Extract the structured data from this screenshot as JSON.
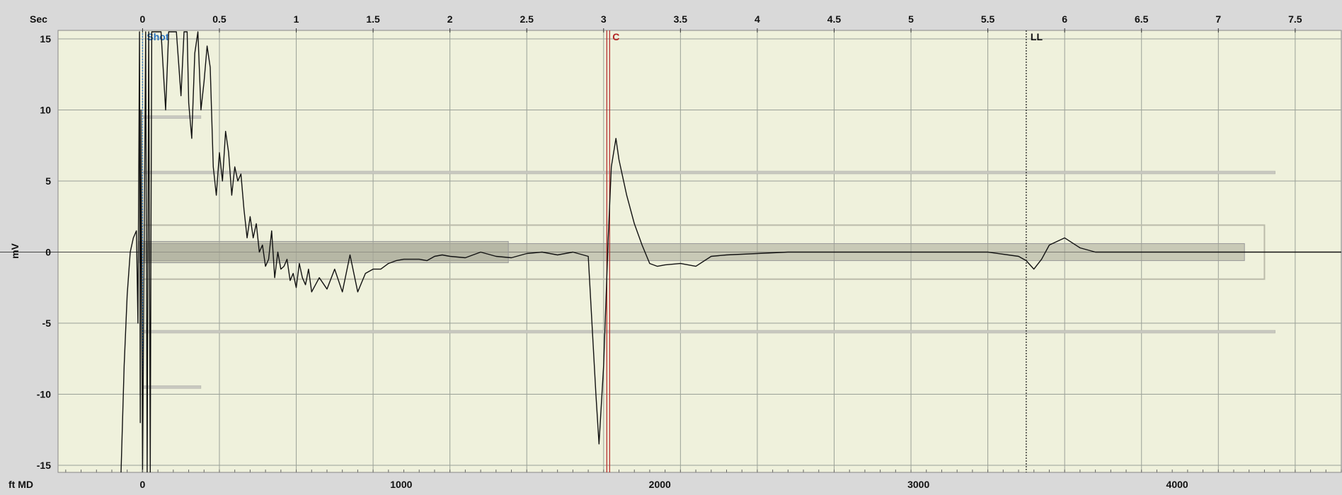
{
  "chart_data": {
    "type": "line",
    "title": "",
    "top_axis": {
      "label": "Sec",
      "range": [
        -0.55,
        7.8
      ],
      "ticks": [
        0,
        0.5,
        1,
        1.5,
        2,
        2.5,
        3,
        3.5,
        4,
        4.5,
        5,
        5.5,
        6,
        6.5,
        7,
        7.5
      ],
      "tick_labels": [
        "0",
        "0.5",
        "1",
        "1.5",
        "2",
        "2.5",
        "3",
        "3.5",
        "4",
        "4.5",
        "5",
        "5.5",
        "6",
        "6.5",
        "7",
        "7.5"
      ]
    },
    "bottom_axis": {
      "label": "ft MD",
      "ticks": [
        0,
        1000,
        2000,
        3000,
        4000
      ],
      "tick_labels": [
        "0",
        "1000",
        "2000",
        "3000",
        "4000"
      ]
    },
    "y_axis": {
      "label": "mV",
      "range": [
        -15.5,
        15.6
      ],
      "ticks": [
        15,
        10,
        5,
        0,
        -5,
        -10,
        -15
      ],
      "tick_labels": [
        "15",
        "10",
        "5",
        "0",
        "-5",
        "-10",
        "-15"
      ]
    },
    "grid": true,
    "markers": [
      {
        "label": "Shot",
        "x": 0,
        "color": "#2a74c0",
        "style": "dotted"
      },
      {
        "label": "C",
        "x": 3.03,
        "color": "#b22222",
        "style": "double"
      },
      {
        "label": "LL",
        "x": 5.75,
        "color": "#111111",
        "style": "dotted"
      }
    ],
    "series": [
      {
        "color": "#111111",
        "x": [
          -0.14,
          -0.12,
          -0.1,
          -0.08,
          -0.06,
          -0.04,
          -0.03,
          -0.02,
          -0.015,
          -0.01,
          0.0,
          0.02,
          0.03,
          0.04,
          0.05,
          0.055,
          0.06,
          0.065,
          0.07,
          0.08,
          0.1,
          0.12,
          0.15,
          0.17,
          0.2,
          0.22,
          0.25,
          0.27,
          0.29,
          0.3,
          0.32,
          0.34,
          0.36,
          0.38,
          0.4,
          0.42,
          0.44,
          0.46,
          0.48,
          0.5,
          0.52,
          0.54,
          0.56,
          0.58,
          0.6,
          0.62,
          0.64,
          0.66,
          0.68,
          0.7,
          0.72,
          0.74,
          0.76,
          0.78,
          0.8,
          0.82,
          0.84,
          0.86,
          0.88,
          0.9,
          0.92,
          0.94,
          0.96,
          0.98,
          1.0,
          1.02,
          1.04,
          1.06,
          1.08,
          1.1,
          1.15,
          1.2,
          1.25,
          1.3,
          1.35,
          1.4,
          1.45,
          1.5,
          1.55,
          1.6,
          1.65,
          1.7,
          1.75,
          1.8,
          1.85,
          1.9,
          1.95,
          2.0,
          2.1,
          2.2,
          2.3,
          2.4,
          2.5,
          2.6,
          2.7,
          2.8,
          2.9,
          2.95,
          2.97,
          3.0,
          3.03,
          3.05,
          3.08,
          3.1,
          3.15,
          3.2,
          3.25,
          3.3,
          3.35,
          3.4,
          3.5,
          3.6,
          3.7,
          3.8,
          4.0,
          4.2,
          4.5,
          5.0,
          5.5,
          5.7,
          5.75,
          5.8,
          5.85,
          5.9,
          6.0,
          6.1,
          6.2,
          6.4,
          6.6,
          6.8,
          7.0,
          7.2,
          7.4,
          7.6,
          7.8
        ],
        "y": [
          -15.5,
          -8,
          -3,
          0,
          1,
          1.5,
          -5,
          15.5,
          -12,
          10,
          -15.5,
          15.5,
          -15.5,
          15.5,
          -15.5,
          2,
          15.5,
          15.5,
          15.5,
          15.5,
          15.5,
          15.5,
          10,
          15.5,
          15.5,
          15.5,
          11,
          15.5,
          15.5,
          10.5,
          8,
          14,
          15.5,
          10,
          12,
          14.5,
          13,
          6,
          4,
          7,
          5,
          8.5,
          7,
          4,
          6,
          5,
          5.5,
          3,
          1,
          2.5,
          1,
          2,
          0,
          0.5,
          -1,
          -0.5,
          1.5,
          -1.8,
          0,
          -1.2,
          -1,
          -0.5,
          -2,
          -1.5,
          -2.5,
          -0.8,
          -1.8,
          -2.3,
          -1.2,
          -2.8,
          -1.8,
          -2.6,
          -1.2,
          -2.8,
          -0.2,
          -2.8,
          -1.5,
          -1.2,
          -1.2,
          -0.8,
          -0.6,
          -0.5,
          -0.5,
          -0.5,
          -0.6,
          -0.3,
          -0.2,
          -0.3,
          -0.4,
          0,
          -0.3,
          -0.4,
          -0.1,
          0,
          -0.2,
          0,
          -0.3,
          -10,
          -13.5,
          -8,
          1,
          6,
          8,
          6.5,
          4,
          2,
          0.5,
          -0.8,
          -1,
          -0.9,
          -0.8,
          -1,
          -0.3,
          -0.2,
          -0.1,
          0,
          0,
          0,
          0,
          -0.3,
          -0.6,
          -1.2,
          -0.5,
          0.5,
          1,
          0.3,
          0,
          0,
          0,
          0,
          0,
          0,
          0,
          0,
          0
        ]
      }
    ],
    "overlays": [
      {
        "kind": "band",
        "x": [
          -0.02,
          7.17
        ],
        "y": [
          -0.6,
          0.6
        ],
        "color": "#a8a898"
      },
      {
        "kind": "band",
        "x": [
          -0.02,
          2.38
        ],
        "y": [
          -0.75,
          0.75
        ],
        "color": "#a8a898"
      },
      {
        "kind": "bracket",
        "x": [
          0,
          7.3
        ],
        "y": [
          -1.9,
          1.9
        ],
        "color": "#bbbbaa"
      },
      {
        "kind": "hline",
        "x": [
          0,
          7.37
        ],
        "y": 5.6,
        "color": "#c8c8c0"
      },
      {
        "kind": "hline",
        "x": [
          0,
          7.37
        ],
        "y": -5.6,
        "color": "#c8c8c0"
      },
      {
        "kind": "hline",
        "x": [
          0,
          0.38
        ],
        "y": 9.5,
        "color": "#c8c8c0"
      },
      {
        "kind": "hline",
        "x": [
          0,
          0.38
        ],
        "y": -9.5,
        "color": "#c8c8c0"
      }
    ],
    "plot_bg": "#eff1dc",
    "grid_color": "#9aa097"
  }
}
